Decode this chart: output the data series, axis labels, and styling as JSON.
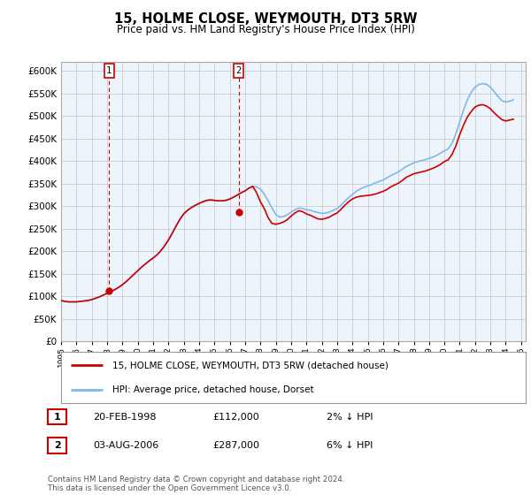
{
  "title": "15, HOLME CLOSE, WEYMOUTH, DT3 5RW",
  "subtitle": "Price paid vs. HM Land Registry's House Price Index (HPI)",
  "ylim": [
    0,
    620000
  ],
  "yticks": [
    0,
    50000,
    100000,
    150000,
    200000,
    250000,
    300000,
    350000,
    400000,
    450000,
    500000,
    550000,
    600000
  ],
  "xmin": 1995.0,
  "xmax": 2025.3,
  "background_color": "#ffffff",
  "chart_bg_color": "#eef4fb",
  "grid_color": "#cccccc",
  "hpi_color": "#7fb8e8",
  "price_color": "#cc0000",
  "transaction1_x": 1998.13,
  "transaction1_y": 112000,
  "transaction2_x": 2006.58,
  "transaction2_y": 287000,
  "legend_line1": "15, HOLME CLOSE, WEYMOUTH, DT3 5RW (detached house)",
  "legend_line2": "HPI: Average price, detached house, Dorset",
  "note1_num": "1",
  "note1_date": "20-FEB-1998",
  "note1_price": "£112,000",
  "note1_hpi": "2% ↓ HPI",
  "note2_num": "2",
  "note2_date": "03-AUG-2006",
  "note2_price": "£287,000",
  "note2_hpi": "6% ↓ HPI",
  "footer": "Contains HM Land Registry data © Crown copyright and database right 2024.\nThis data is licensed under the Open Government Licence v3.0.",
  "hpi_data_x": [
    1995.0,
    1995.25,
    1995.5,
    1995.75,
    1996.0,
    1996.25,
    1996.5,
    1996.75,
    1997.0,
    1997.25,
    1997.5,
    1997.75,
    1998.0,
    1998.25,
    1998.5,
    1998.75,
    1999.0,
    1999.25,
    1999.5,
    1999.75,
    2000.0,
    2000.25,
    2000.5,
    2000.75,
    2001.0,
    2001.25,
    2001.5,
    2001.75,
    2002.0,
    2002.25,
    2002.5,
    2002.75,
    2003.0,
    2003.25,
    2003.5,
    2003.75,
    2004.0,
    2004.25,
    2004.5,
    2004.75,
    2005.0,
    2005.25,
    2005.5,
    2005.75,
    2006.0,
    2006.25,
    2006.5,
    2006.75,
    2007.0,
    2007.25,
    2007.5,
    2007.75,
    2008.0,
    2008.25,
    2008.5,
    2008.75,
    2009.0,
    2009.25,
    2009.5,
    2009.75,
    2010.0,
    2010.25,
    2010.5,
    2010.75,
    2011.0,
    2011.25,
    2011.5,
    2011.75,
    2012.0,
    2012.25,
    2012.5,
    2012.75,
    2013.0,
    2013.25,
    2013.5,
    2013.75,
    2014.0,
    2014.25,
    2014.5,
    2014.75,
    2015.0,
    2015.25,
    2015.5,
    2015.75,
    2016.0,
    2016.25,
    2016.5,
    2016.75,
    2017.0,
    2017.25,
    2017.5,
    2017.75,
    2018.0,
    2018.25,
    2018.5,
    2018.75,
    2019.0,
    2019.25,
    2019.5,
    2019.75,
    2020.0,
    2020.25,
    2020.5,
    2020.75,
    2021.0,
    2021.25,
    2021.5,
    2021.75,
    2022.0,
    2022.25,
    2022.5,
    2022.75,
    2023.0,
    2023.25,
    2023.5,
    2023.75,
    2024.0,
    2024.25,
    2024.5
  ],
  "hpi_data_y": [
    91000,
    89000,
    88000,
    88000,
    88000,
    89000,
    90000,
    91000,
    93000,
    96000,
    99000,
    103000,
    107000,
    111000,
    115000,
    120000,
    126000,
    133000,
    141000,
    149000,
    157000,
    165000,
    172000,
    179000,
    185000,
    192000,
    201000,
    212000,
    225000,
    240000,
    256000,
    271000,
    283000,
    291000,
    297000,
    302000,
    306000,
    310000,
    313000,
    314000,
    313000,
    312000,
    312000,
    313000,
    316000,
    320000,
    325000,
    330000,
    334000,
    340000,
    344000,
    343000,
    338000,
    327000,
    312000,
    296000,
    282000,
    276000,
    277000,
    281000,
    287000,
    292000,
    296000,
    295000,
    292000,
    291000,
    288000,
    286000,
    284000,
    285000,
    287000,
    291000,
    295000,
    302000,
    311000,
    319000,
    326000,
    333000,
    338000,
    342000,
    345000,
    348000,
    352000,
    355000,
    358000,
    363000,
    368000,
    372000,
    376000,
    382000,
    388000,
    392000,
    396000,
    399000,
    401000,
    403000,
    406000,
    409000,
    413000,
    418000,
    423000,
    427000,
    440000,
    461000,
    487000,
    514000,
    536000,
    553000,
    564000,
    570000,
    572000,
    570000,
    564000,
    554000,
    543000,
    534000,
    531000,
    533000,
    536000
  ],
  "price_data_x": [
    1995.0,
    1995.25,
    1995.5,
    1995.75,
    1996.0,
    1996.25,
    1996.5,
    1996.75,
    1997.0,
    1997.25,
    1997.5,
    1997.75,
    1998.0,
    1998.25,
    1998.5,
    1998.75,
    1999.0,
    1999.25,
    1999.5,
    1999.75,
    2000.0,
    2000.25,
    2000.5,
    2000.75,
    2001.0,
    2001.25,
    2001.5,
    2001.75,
    2002.0,
    2002.25,
    2002.5,
    2002.75,
    2003.0,
    2003.25,
    2003.5,
    2003.75,
    2004.0,
    2004.25,
    2004.5,
    2004.75,
    2005.0,
    2005.25,
    2005.5,
    2005.75,
    2006.0,
    2006.25,
    2006.5,
    2006.75,
    2007.0,
    2007.25,
    2007.5,
    2007.75,
    2008.0,
    2008.25,
    2008.5,
    2008.75,
    2009.0,
    2009.25,
    2009.5,
    2009.75,
    2010.0,
    2010.25,
    2010.5,
    2010.75,
    2011.0,
    2011.25,
    2011.5,
    2011.75,
    2012.0,
    2012.25,
    2012.5,
    2012.75,
    2013.0,
    2013.25,
    2013.5,
    2013.75,
    2014.0,
    2014.25,
    2014.5,
    2014.75,
    2015.0,
    2015.25,
    2015.5,
    2015.75,
    2016.0,
    2016.25,
    2016.5,
    2016.75,
    2017.0,
    2017.25,
    2017.5,
    2017.75,
    2018.0,
    2018.25,
    2018.5,
    2018.75,
    2019.0,
    2019.25,
    2019.5,
    2019.75,
    2020.0,
    2020.25,
    2020.5,
    2020.75,
    2021.0,
    2021.25,
    2021.5,
    2021.75,
    2022.0,
    2022.25,
    2022.5,
    2022.75,
    2023.0,
    2023.25,
    2023.5,
    2023.75,
    2024.0,
    2024.25,
    2024.5
  ],
  "price_data_y": [
    91000,
    89000,
    88000,
    88000,
    88000,
    89000,
    90000,
    91000,
    93000,
    96000,
    99000,
    103000,
    107000,
    111000,
    115000,
    120000,
    126000,
    133000,
    141000,
    149000,
    157000,
    165000,
    172000,
    179000,
    185000,
    192000,
    201000,
    212000,
    225000,
    240000,
    256000,
    271000,
    283000,
    291000,
    297000,
    302000,
    306000,
    310000,
    313000,
    314000,
    313000,
    312000,
    312000,
    313000,
    316000,
    320000,
    325000,
    330000,
    334000,
    340000,
    344000,
    330000,
    310000,
    295000,
    275000,
    262000,
    260000,
    262000,
    265000,
    270000,
    278000,
    285000,
    290000,
    288000,
    283000,
    280000,
    276000,
    272000,
    271000,
    273000,
    276000,
    281000,
    285000,
    293000,
    302000,
    310000,
    316000,
    320000,
    322000,
    323000,
    324000,
    325000,
    327000,
    330000,
    333000,
    337000,
    343000,
    347000,
    351000,
    357000,
    364000,
    368000,
    372000,
    374000,
    376000,
    378000,
    381000,
    384000,
    388000,
    393000,
    399000,
    403000,
    415000,
    434000,
    459000,
    480000,
    498000,
    510000,
    520000,
    524000,
    525000,
    522000,
    516000,
    507000,
    499000,
    492000,
    489000,
    491000,
    493000
  ]
}
